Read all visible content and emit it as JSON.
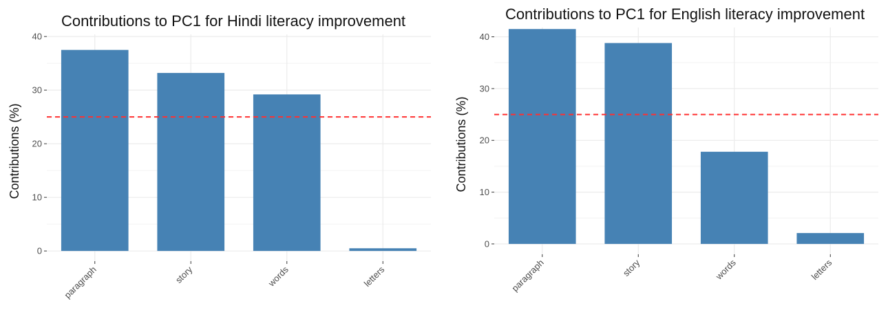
{
  "chart_data": [
    {
      "type": "bar",
      "title": "Contributions to PC1 for Hindi literacy improvement",
      "ylabel": "Contributions (%)",
      "xlabel": "",
      "categories": [
        "paragraph",
        "story",
        "words",
        "letters"
      ],
      "values": [
        37.5,
        33.2,
        29.2,
        0.5
      ],
      "yticks": [
        0,
        10,
        20,
        30,
        40
      ],
      "ylim": [
        -1.9,
        40.4
      ],
      "reference_line": 25,
      "bar_color": "#4682b4",
      "reference_line_color": "#ff3030",
      "grid": true,
      "legend": "none"
    },
    {
      "type": "bar",
      "title": "Contributions to PC1 for English literacy improvement",
      "ylabel": "Contributions (%)",
      "xlabel": "",
      "categories": [
        "paragraph",
        "story",
        "words",
        "letters"
      ],
      "values": [
        41.5,
        38.8,
        17.8,
        2.1
      ],
      "yticks": [
        0,
        10,
        20,
        30,
        40
      ],
      "ylim": [
        -2.0,
        41.8
      ],
      "reference_line": 25,
      "bar_color": "#4682b4",
      "reference_line_color": "#ff3030",
      "grid": true,
      "legend": "none"
    }
  ]
}
